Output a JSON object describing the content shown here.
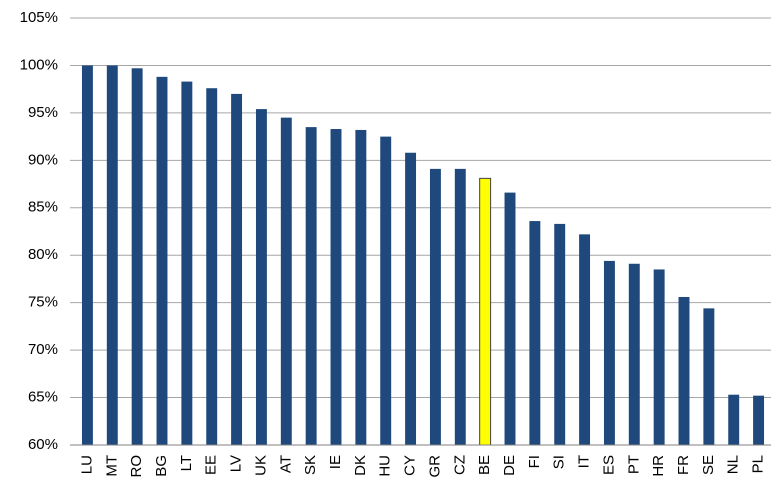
{
  "chart_data": {
    "type": "bar",
    "categories": [
      "LU",
      "MT",
      "RO",
      "BG",
      "LT",
      "EE",
      "LV",
      "UK",
      "AT",
      "SK",
      "IE",
      "DK",
      "HU",
      "CY",
      "GR",
      "CZ",
      "BE",
      "DE",
      "FI",
      "SI",
      "IT",
      "ES",
      "PT",
      "HR",
      "FR",
      "SE",
      "NL",
      "PL"
    ],
    "values": [
      100,
      100,
      99.7,
      98.8,
      98.3,
      97.6,
      97.0,
      95.4,
      94.5,
      93.5,
      93.3,
      93.2,
      92.5,
      90.8,
      89.1,
      89.1,
      88.1,
      86.6,
      83.6,
      83.3,
      82.2,
      79.4,
      79.1,
      78.5,
      75.6,
      74.4,
      65.3,
      65.2
    ],
    "colors": [
      "#1f497d",
      "#1f497d",
      "#1f497d",
      "#1f497d",
      "#1f497d",
      "#1f497d",
      "#1f497d",
      "#1f497d",
      "#1f497d",
      "#1f497d",
      "#1f497d",
      "#1f497d",
      "#1f497d",
      "#1f497d",
      "#1f497d",
      "#1f497d",
      "#ffff00",
      "#1f497d",
      "#1f497d",
      "#1f497d",
      "#1f497d",
      "#1f497d",
      "#1f497d",
      "#1f497d",
      "#1f497d",
      "#1f497d",
      "#1f497d",
      "#1f497d"
    ],
    "ylim": [
      60,
      105
    ],
    "yticks": [
      {
        "value": 60,
        "label": "60%"
      },
      {
        "value": 65,
        "label": "65%"
      },
      {
        "value": 70,
        "label": "70%"
      },
      {
        "value": 75,
        "label": "75%"
      },
      {
        "value": 80,
        "label": "80%"
      },
      {
        "value": 85,
        "label": "85%"
      },
      {
        "value": 90,
        "label": "90%"
      },
      {
        "value": 95,
        "label": "95%"
      },
      {
        "value": 100,
        "label": "100%"
      },
      {
        "value": 105,
        "label": "105%"
      }
    ],
    "grid": true
  }
}
